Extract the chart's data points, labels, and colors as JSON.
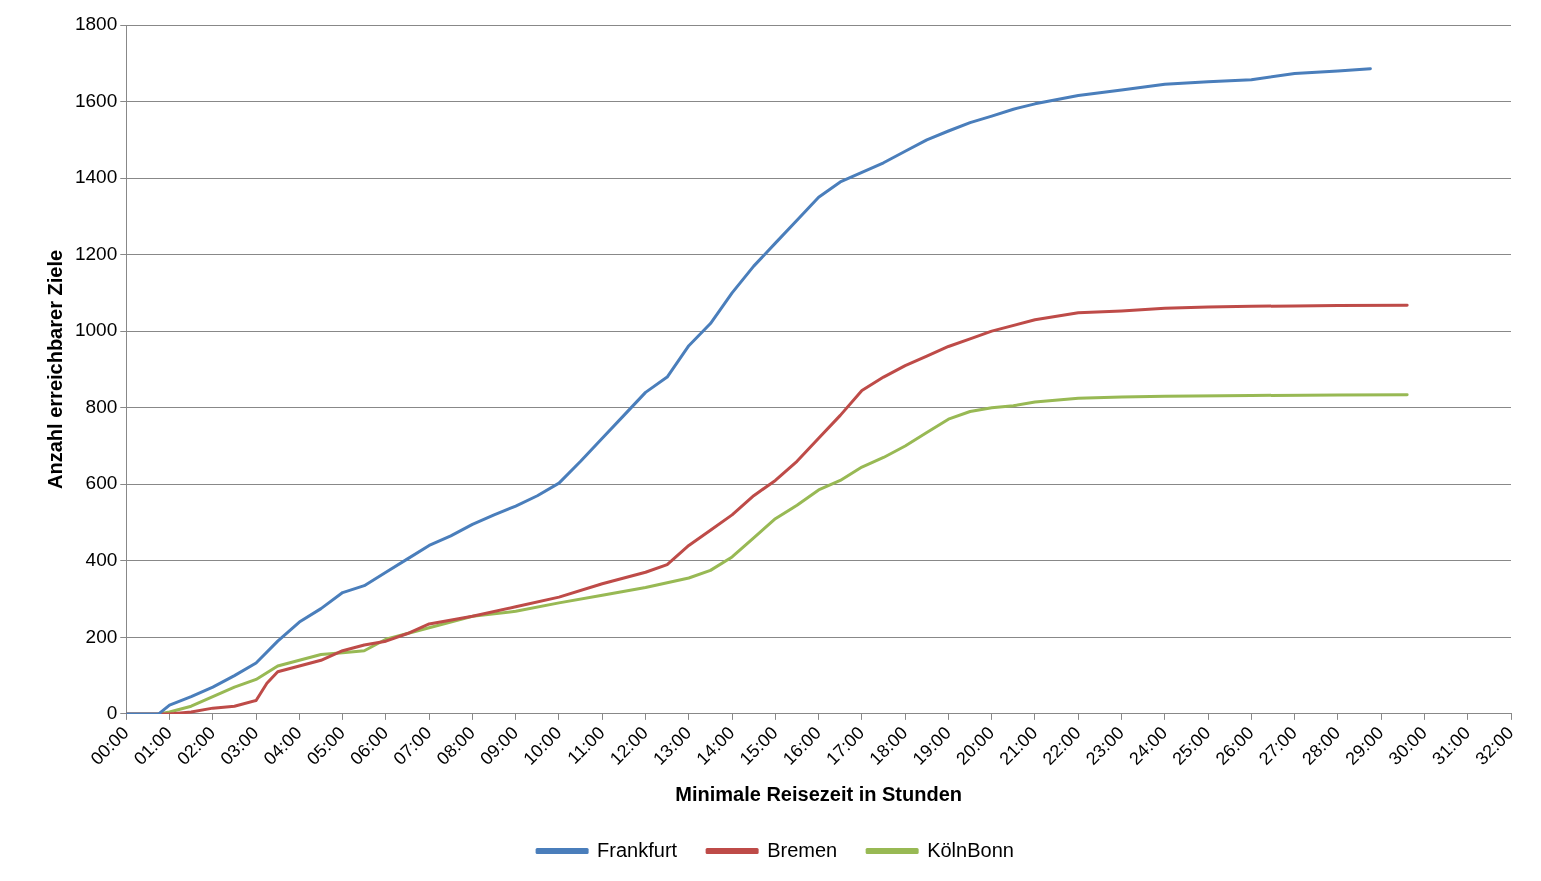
{
  "chart_data": {
    "type": "line",
    "xlabel": "Minimale Reisezeit in Stunden",
    "ylabel": "Anzahl erreichbarer Ziele",
    "series": [
      {
        "name": "Frankfurt",
        "color": "#4a7ebb",
        "x": [
          0,
          0.75,
          1,
          1.5,
          2,
          2.5,
          3,
          3.5,
          4,
          4.5,
          5,
          5.5,
          6,
          6.5,
          7,
          7.5,
          8,
          8.5,
          9,
          9.5,
          10,
          10.5,
          11,
          11.5,
          12,
          12.5,
          13,
          13.5,
          14,
          14.5,
          15,
          15.5,
          16,
          16.5,
          17,
          17.5,
          18,
          18.5,
          19,
          19.5,
          20,
          20.5,
          21,
          22,
          23,
          24,
          25,
          26,
          27,
          28,
          28.75
        ],
        "values": [
          0,
          0,
          23,
          45,
          70,
          100,
          133,
          190,
          240,
          275,
          317,
          335,
          370,
          405,
          440,
          465,
          495,
          520,
          543,
          570,
          603,
          660,
          720,
          780,
          840,
          880,
          962,
          1020,
          1100,
          1170,
          1230,
          1290,
          1350,
          1390,
          1415,
          1440,
          1470,
          1500,
          1523,
          1545,
          1562,
          1580,
          1594,
          1616,
          1630,
          1645,
          1652,
          1657,
          1673,
          1680,
          1686
        ]
      },
      {
        "name": "Bremen",
        "color": "#be4b48",
        "x": [
          0,
          1,
          1.5,
          2,
          2.5,
          3,
          3.25,
          3.5,
          4,
          4.5,
          5,
          5.5,
          6,
          6.5,
          7,
          8,
          9,
          10,
          11,
          12,
          12.5,
          13,
          13.5,
          14,
          14.5,
          15,
          15.5,
          16,
          16.5,
          17,
          17.5,
          18,
          18.5,
          19,
          19.5,
          20,
          21,
          22,
          23,
          24,
          25,
          26,
          27,
          28,
          29.6
        ],
        "values": [
          0,
          0,
          5,
          15,
          20,
          35,
          80,
          110,
          125,
          140,
          165,
          180,
          190,
          210,
          235,
          255,
          280,
          305,
          340,
          370,
          390,
          440,
          480,
          520,
          570,
          610,
          660,
          720,
          780,
          845,
          880,
          910,
          935,
          960,
          980,
          1000,
          1030,
          1048,
          1053,
          1060,
          1063,
          1065,
          1066,
          1067,
          1068
        ]
      },
      {
        "name": "KölnBonn",
        "color": "#98b954",
        "x": [
          0,
          0.75,
          1,
          1.5,
          2,
          2.5,
          3,
          3.5,
          4,
          4.5,
          5,
          5.5,
          6,
          6.5,
          7,
          8,
          9,
          10,
          11,
          12,
          13,
          13.5,
          14,
          14.5,
          15,
          15.5,
          16,
          16.5,
          17,
          17.5,
          18,
          18.5,
          19,
          19.5,
          20,
          20.5,
          21,
          22,
          23,
          24,
          26,
          28,
          29.6
        ],
        "values": [
          0,
          0,
          5,
          20,
          45,
          70,
          90,
          125,
          140,
          155,
          160,
          165,
          195,
          210,
          225,
          255,
          268,
          290,
          310,
          330,
          355,
          375,
          410,
          460,
          510,
          545,
          585,
          610,
          645,
          670,
          700,
          735,
          770,
          790,
          800,
          805,
          815,
          825,
          828,
          830,
          832,
          833,
          834
        ]
      }
    ],
    "xlim": [
      0,
      32
    ],
    "xticks": [
      {
        "value": 0,
        "label": "00:00"
      },
      {
        "value": 1,
        "label": "01:00"
      },
      {
        "value": 2,
        "label": "02:00"
      },
      {
        "value": 3,
        "label": "03:00"
      },
      {
        "value": 4,
        "label": "04:00"
      },
      {
        "value": 5,
        "label": "05:00"
      },
      {
        "value": 6,
        "label": "06:00"
      },
      {
        "value": 7,
        "label": "07:00"
      },
      {
        "value": 8,
        "label": "08:00"
      },
      {
        "value": 9,
        "label": "09:00"
      },
      {
        "value": 10,
        "label": "10:00"
      },
      {
        "value": 11,
        "label": "11:00"
      },
      {
        "value": 12,
        "label": "12:00"
      },
      {
        "value": 13,
        "label": "13:00"
      },
      {
        "value": 14,
        "label": "14:00"
      },
      {
        "value": 15,
        "label": "15:00"
      },
      {
        "value": 16,
        "label": "16:00"
      },
      {
        "value": 17,
        "label": "17:00"
      },
      {
        "value": 18,
        "label": "18:00"
      },
      {
        "value": 19,
        "label": "19:00"
      },
      {
        "value": 20,
        "label": "20:00"
      },
      {
        "value": 21,
        "label": "21:00"
      },
      {
        "value": 22,
        "label": "22:00"
      },
      {
        "value": 23,
        "label": "23:00"
      },
      {
        "value": 24,
        "label": "24:00"
      },
      {
        "value": 25,
        "label": "25:00"
      },
      {
        "value": 26,
        "label": "26:00"
      },
      {
        "value": 27,
        "label": "27:00"
      },
      {
        "value": 28,
        "label": "28:00"
      },
      {
        "value": 29,
        "label": "29:00"
      },
      {
        "value": 30,
        "label": "30:00"
      },
      {
        "value": 31,
        "label": "31:00"
      },
      {
        "value": 32,
        "label": "32:00"
      }
    ],
    "ylim": [
      0,
      1800
    ],
    "yticks": [
      0,
      200,
      400,
      600,
      800,
      1000,
      1200,
      1400,
      1600,
      1800
    ],
    "grid": "y",
    "legend": "bottom",
    "marker": "none",
    "line_style": "solid"
  }
}
